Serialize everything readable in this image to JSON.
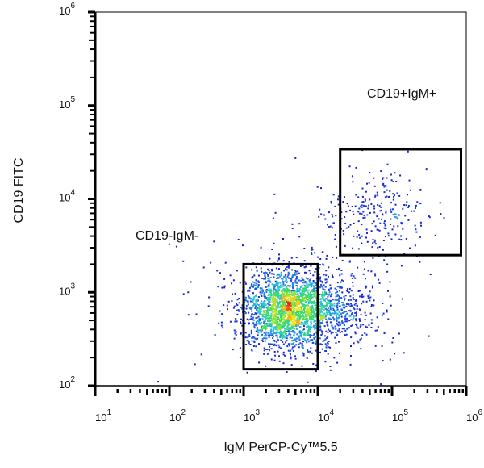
{
  "chart_data": {
    "type": "scatter",
    "subtype": "flow-cytometry-density-dot-plot",
    "xlabel": "IgM PerCP-Cy™5.5",
    "ylabel": "CD19 FITC",
    "x_scale": "log",
    "y_scale": "log",
    "xlim": [
      10,
      1000000
    ],
    "ylim": [
      100,
      1000000
    ],
    "x_ticks": [
      {
        "value": 10,
        "base": "10",
        "exp": "1"
      },
      {
        "value": 100,
        "base": "10",
        "exp": "2"
      },
      {
        "value": 1000,
        "base": "10",
        "exp": "3"
      },
      {
        "value": 10000,
        "base": "10",
        "exp": "4"
      },
      {
        "value": 100000,
        "base": "10",
        "exp": "5"
      },
      {
        "value": 1000000,
        "base": "10",
        "exp": "6"
      }
    ],
    "y_ticks": [
      {
        "value": 100,
        "base": "10",
        "exp": "2"
      },
      {
        "value": 1000,
        "base": "10",
        "exp": "3"
      },
      {
        "value": 10000,
        "base": "10",
        "exp": "4"
      },
      {
        "value": 100000,
        "base": "10",
        "exp": "5"
      },
      {
        "value": 1000000,
        "base": "10",
        "exp": "6"
      }
    ],
    "grid": false,
    "colormap": "jet density (blue low, red high)",
    "populations": [
      {
        "center_x": 3800,
        "center_y": 660,
        "count": 2200,
        "spread_log_x": 0.28,
        "spread_log_y": 0.2
      },
      {
        "center_x": 15000,
        "center_y": 700,
        "count": 500,
        "spread_log_x": 0.3,
        "spread_log_y": 0.18
      },
      {
        "center_x": 60000,
        "center_y": 7000,
        "count": 260,
        "spread_log_x": 0.35,
        "spread_log_y": 0.2
      }
    ],
    "gates": [
      {
        "label": "",
        "x_range": [
          1000,
          10000
        ],
        "y_range": [
          150,
          2000
        ]
      },
      {
        "label": "",
        "x_range": [
          20000,
          850000
        ],
        "y_range": [
          2500,
          34000
        ]
      }
    ],
    "annotations": [
      {
        "text": "CD19+IgM+"
      },
      {
        "text": "CD19-IgM-"
      }
    ],
    "legend": "none"
  }
}
